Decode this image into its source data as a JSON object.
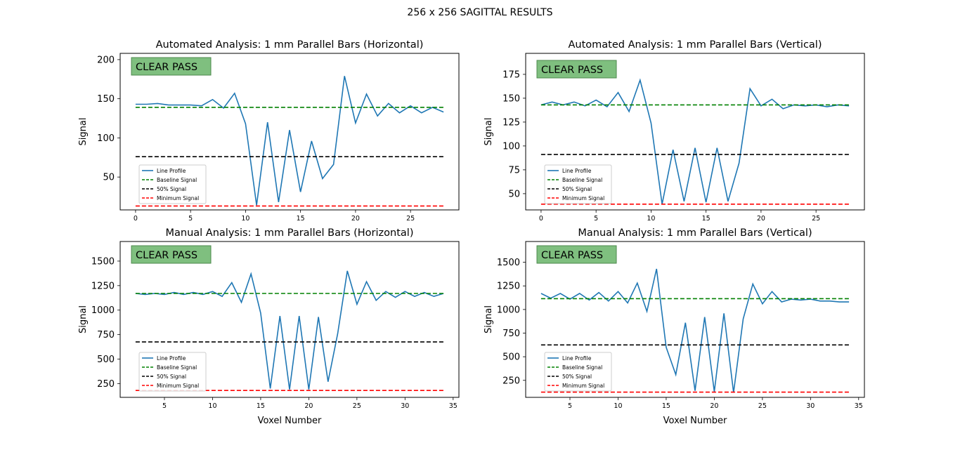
{
  "figure": {
    "title": "256 x 256 SAGITTAL RESULTS"
  },
  "colors": {
    "line_profile": "#1f77b4",
    "baseline": "#008000",
    "half": "#000000",
    "minimum": "#ff0000",
    "badge_fill": "#7fbf7f",
    "badge_border": "#4d8a4d"
  },
  "legend_labels": [
    "Line Profile",
    "Baseline Signal",
    "50% Signal",
    "Minimum Signal"
  ],
  "chart_data": [
    {
      "type": "line",
      "title": "Automated Analysis: 1 mm Parallel Bars (Horizontal)",
      "xlabel": "",
      "ylabel": "Signal",
      "badge": "CLEAR PASS",
      "legend_position": "lower-left",
      "xlim": [
        -1.4,
        29.4
      ],
      "ylim": [
        8,
        208
      ],
      "xticks": [
        0,
        5,
        10,
        15,
        20,
        25
      ],
      "yticks": [
        50,
        100,
        150,
        200
      ],
      "x": [
        0,
        1,
        2,
        3,
        4,
        5,
        6,
        7,
        8,
        9,
        10,
        11,
        12,
        13,
        14,
        15,
        16,
        17,
        18,
        19,
        20,
        21,
        22,
        23,
        24,
        25,
        26,
        27,
        28
      ],
      "series": [
        {
          "name": "Line Profile",
          "values": [
            143,
            143,
            144,
            142,
            142,
            142,
            141,
            149,
            138,
            157,
            118,
            14,
            120,
            18,
            110,
            31,
            96,
            48,
            66,
            179,
            119,
            156,
            128,
            144,
            132,
            141,
            132,
            139,
            133
          ]
        },
        {
          "name": "Baseline Signal",
          "constant": 139
        },
        {
          "name": "50% Signal",
          "constant": 76
        },
        {
          "name": "Minimum Signal",
          "constant": 13
        }
      ]
    },
    {
      "type": "line",
      "title": "Automated Analysis: 1 mm Parallel Bars (Vertical)",
      "xlabel": "",
      "ylabel": "Signal",
      "badge": "CLEAR PASS",
      "legend_position": "lower-left",
      "xlim": [
        -1.4,
        29.4
      ],
      "ylim": [
        33,
        197
      ],
      "xticks": [
        0,
        5,
        10,
        15,
        20,
        25
      ],
      "yticks": [
        50,
        75,
        100,
        125,
        150,
        175
      ],
      "x": [
        0,
        1,
        2,
        3,
        4,
        5,
        6,
        7,
        8,
        9,
        10,
        11,
        12,
        13,
        14,
        15,
        16,
        17,
        18,
        19,
        20,
        21,
        22,
        23,
        24,
        25,
        26,
        27,
        28
      ],
      "series": [
        {
          "name": "Line Profile",
          "values": [
            143,
            146,
            143,
            146,
            142,
            148,
            141,
            156,
            136,
            169,
            124,
            39,
            96,
            42,
            98,
            41,
            98,
            42,
            82,
            160,
            142,
            149,
            139,
            143,
            142,
            143,
            141,
            143,
            142
          ]
        },
        {
          "name": "Baseline Signal",
          "constant": 143
        },
        {
          "name": "50% Signal",
          "constant": 91
        },
        {
          "name": "Minimum Signal",
          "constant": 39
        }
      ]
    },
    {
      "type": "line",
      "title": "Manual Analysis: 1 mm Parallel Bars (Horizontal)",
      "xlabel": "Voxel Number",
      "ylabel": "Signal",
      "badge": "CLEAR PASS",
      "legend_position": "lower-left",
      "xlim": [
        0.4,
        35.6
      ],
      "ylim": [
        110,
        1700
      ],
      "xticks": [
        5,
        10,
        15,
        20,
        25,
        30,
        35
      ],
      "yticks": [
        250,
        500,
        750,
        1000,
        1250,
        1500
      ],
      "x": [
        2,
        3,
        4,
        5,
        6,
        7,
        8,
        9,
        10,
        11,
        12,
        13,
        14,
        15,
        16,
        17,
        18,
        19,
        20,
        21,
        22,
        23,
        24,
        25,
        26,
        27,
        28,
        29,
        30,
        31,
        32,
        33,
        34
      ],
      "series": [
        {
          "name": "Line Profile",
          "values": [
            1170,
            1160,
            1170,
            1160,
            1180,
            1160,
            1180,
            1160,
            1190,
            1140,
            1280,
            1080,
            1370,
            970,
            200,
            940,
            190,
            940,
            190,
            930,
            270,
            760,
            1400,
            1060,
            1290,
            1100,
            1190,
            1130,
            1190,
            1140,
            1180,
            1140,
            1170
          ]
        },
        {
          "name": "Baseline Signal",
          "constant": 1170
        },
        {
          "name": "50% Signal",
          "constant": 675
        },
        {
          "name": "Minimum Signal",
          "constant": 180
        }
      ]
    },
    {
      "type": "line",
      "title": "Manual Analysis: 1 mm Parallel Bars (Vertical)",
      "xlabel": "Voxel Number",
      "ylabel": "Signal",
      "badge": "CLEAR PASS",
      "legend_position": "lower-left",
      "xlim": [
        0.4,
        35.6
      ],
      "ylim": [
        70,
        1720
      ],
      "xticks": [
        5,
        10,
        15,
        20,
        25,
        30,
        35
      ],
      "yticks": [
        250,
        500,
        750,
        1000,
        1250,
        1500
      ],
      "x": [
        2,
        3,
        4,
        5,
        6,
        7,
        8,
        9,
        10,
        11,
        12,
        13,
        14,
        15,
        16,
        17,
        18,
        19,
        20,
        21,
        22,
        23,
        24,
        25,
        26,
        27,
        28,
        29,
        30,
        31,
        32,
        33,
        34
      ],
      "series": [
        {
          "name": "Line Profile",
          "values": [
            1170,
            1120,
            1170,
            1110,
            1170,
            1100,
            1180,
            1090,
            1190,
            1070,
            1280,
            980,
            1430,
            600,
            310,
            860,
            140,
            920,
            130,
            960,
            120,
            900,
            1270,
            1060,
            1190,
            1080,
            1110,
            1100,
            1110,
            1090,
            1090,
            1080,
            1080
          ]
        },
        {
          "name": "Baseline Signal",
          "constant": 1115
        },
        {
          "name": "50% Signal",
          "constant": 625
        },
        {
          "name": "Minimum Signal",
          "constant": 125
        }
      ]
    }
  ]
}
